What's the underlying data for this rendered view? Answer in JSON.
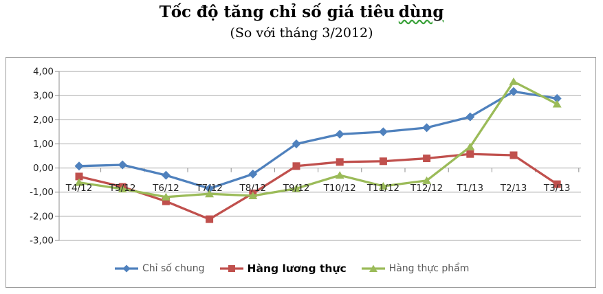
{
  "title": {
    "text_before": "Tốc độ tăng chỉ số giá tiêu",
    "underlined_word": "dùng"
  },
  "subtitle": "(So với tháng 3/2012)",
  "chart_data": {
    "type": "line",
    "title": "Tốc độ tăng chỉ số giá tiêu dùng",
    "subtitle": "(So với tháng 3/2012)",
    "categories": [
      "T4/12",
      "T5/12",
      "T6/12",
      "T7/12",
      "T8/12",
      "T9/12",
      "T10/12",
      "T11/12",
      "T12/12",
      "T1/13",
      "T2/13",
      "T3/13"
    ],
    "series": [
      {
        "name": "Chỉ số chung",
        "marker": "diamond",
        "color": "#4f81bd",
        "values": [
          0.08,
          0.13,
          -0.3,
          -0.85,
          -0.25,
          1.0,
          1.4,
          1.5,
          1.67,
          2.12,
          3.17,
          2.88
        ]
      },
      {
        "name": "Hàng lương thực",
        "marker": "square",
        "color": "#c0504d",
        "emphasized_in_legend": true,
        "values": [
          -0.35,
          -0.78,
          -1.38,
          -2.12,
          -1.05,
          0.08,
          0.25,
          0.28,
          0.4,
          0.58,
          0.53,
          -0.67
        ]
      },
      {
        "name": "Hàng thực phẩm",
        "marker": "triangle",
        "color": "#9bbb59",
        "values": [
          -0.6,
          -0.87,
          -1.2,
          -1.07,
          -1.15,
          -0.85,
          -0.3,
          -0.75,
          -0.52,
          0.88,
          3.58,
          2.65
        ]
      }
    ],
    "y_axis": {
      "ticks": [
        {
          "label": "4,00",
          "value": 4
        },
        {
          "label": "3,00",
          "value": 3
        },
        {
          "label": "2,00",
          "value": 2
        },
        {
          "label": "1,00",
          "value": 1
        },
        {
          "label": "0,00",
          "value": 0
        },
        {
          "label": "-1,00",
          "value": -1
        },
        {
          "label": "-2,00",
          "value": -2
        },
        {
          "label": "-3,00",
          "value": -3
        }
      ],
      "range": [
        -3,
        4
      ],
      "decimal_separator": ","
    },
    "grid": true,
    "legend_position": "bottom"
  },
  "colors": {
    "gridline": "#a6a6a6",
    "axis": "#8c8c8c",
    "border": "#9d9d9d",
    "axis_text": "#262626",
    "legend_text": "#595959",
    "legend_text_emphasis": "#000000",
    "background": "#ffffff",
    "title_underline": "#3aa13a"
  }
}
